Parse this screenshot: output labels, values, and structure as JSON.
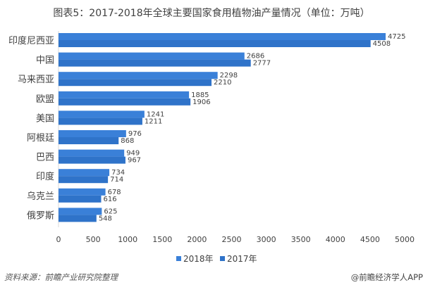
{
  "chart_data": {
    "type": "bar",
    "orientation": "horizontal",
    "title": "图表5：2017-2018年全球主要国家食用植物油产量情况（单位：万吨）",
    "categories": [
      "印度尼西亚",
      "中国",
      "马来西亚",
      "欧盟",
      "美国",
      "阿根廷",
      "巴西",
      "印度",
      "乌克兰",
      "俄罗斯"
    ],
    "series": [
      {
        "name": "2018年",
        "color": "#3a80d8",
        "values": [
          4725,
          2686,
          2298,
          1885,
          1241,
          976,
          949,
          734,
          678,
          625
        ]
      },
      {
        "name": "2017年",
        "color": "#2f73c9",
        "values": [
          4508,
          2777,
          2210,
          1906,
          1211,
          868,
          967,
          714,
          616,
          548
        ]
      }
    ],
    "xlim": [
      0,
      5000
    ],
    "xticks": [
      0,
      500,
      1000,
      1500,
      2000,
      2500,
      3000,
      3500,
      4000,
      4500,
      5000
    ],
    "grid": false,
    "legend": "bottom",
    "source": "资料来源：前瞻产业研究院整理",
    "credit": "@前瞻经济学人APP"
  }
}
